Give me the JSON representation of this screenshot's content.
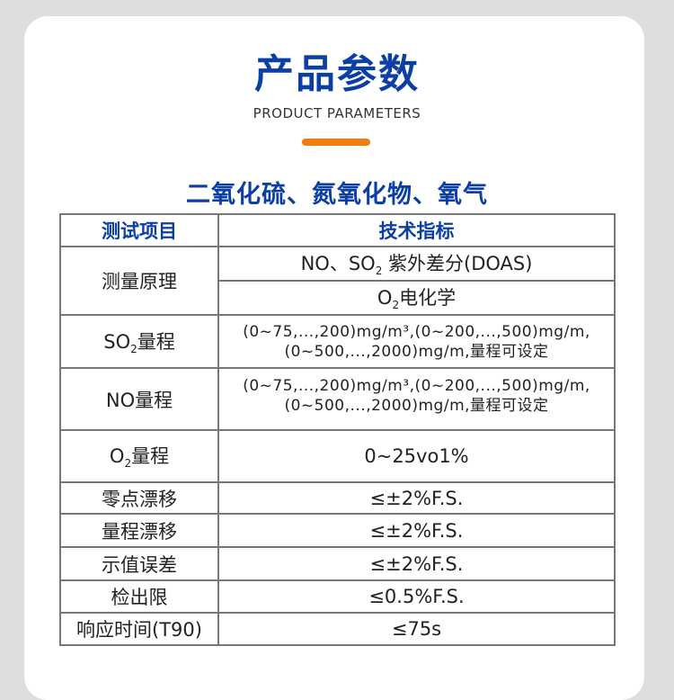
{
  "header": {
    "title": "产品参数",
    "subtitle": "PRODUCT PARAMETERS",
    "section_title": "二氧化硫、氮氧化物、氧气"
  },
  "table": {
    "headers": [
      "测试项目",
      "技术指标"
    ],
    "principle": {
      "label": "测量原理",
      "value1_pre": "NO、SO",
      "value1_sub": "2",
      "value1_post": " 紫外差分(DOAS)",
      "value2_pre": "O",
      "value2_sub": "2",
      "value2_post": "电化学"
    },
    "so2": {
      "label_pre": "SO",
      "label_sub": "2",
      "label_post": "量程",
      "line1": "(0~75,...,200)mg/m³,(0~200,...,500)mg/m,",
      "line2": "(0~500,...,2000)mg/m,量程可设定"
    },
    "no": {
      "label": "NO量程",
      "line1": "(0~75,...,200)mg/m³,(0~200,...,500)mg/m,",
      "line2": "(0~500,...,2000)mg/m,量程可设定"
    },
    "o2": {
      "label_pre": "O",
      "label_sub": "2",
      "label_post": "量程",
      "value": "0~25vo1%"
    },
    "rows": [
      {
        "label": "零点漂移",
        "value": "≤±2%F.S."
      },
      {
        "label": "量程漂移",
        "value": "≤±2%F.S."
      },
      {
        "label": "示值误差",
        "value": "≤±2%F.S."
      },
      {
        "label": "检出限",
        "value": "≤0.5%F.S."
      },
      {
        "label": "响应时间(T90)",
        "value": "≤75s"
      }
    ]
  },
  "colors": {
    "accent": "#0c3fa3",
    "bar": "#f07c12",
    "background": "#dedede"
  }
}
